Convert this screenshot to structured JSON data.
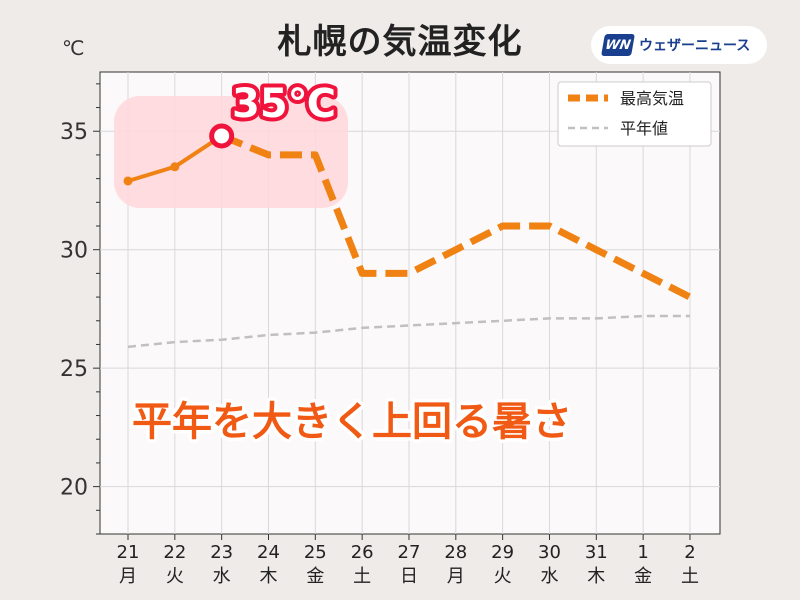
{
  "header": {
    "title": "札幌の気温変化",
    "unit": "℃",
    "logo_mark": "WN",
    "logo_text": "ウェザーニュース"
  },
  "annotations": {
    "peak_label": "35℃",
    "caption": "平年を大きく上回る暑さ"
  },
  "colors": {
    "max_temp": "#f08214",
    "normal": "#c0c0c0",
    "holiday": "#d03030",
    "saturday": "#2a82d0",
    "peak_marker": "#f0143c",
    "highlight_box": "#ffd7dc"
  },
  "chart_data": {
    "type": "line",
    "title": "札幌の気温変化",
    "ylabel": "℃",
    "ylim": [
      18,
      37.5
    ],
    "yticks": [
      20,
      25,
      30,
      35
    ],
    "grid": true,
    "legend_position": "top-right",
    "categories": [
      {
        "day": "21",
        "weekday": "月",
        "color": "holiday"
      },
      {
        "day": "22",
        "weekday": "火",
        "color": "normal"
      },
      {
        "day": "23",
        "weekday": "水",
        "color": "normal"
      },
      {
        "day": "24",
        "weekday": "木",
        "color": "normal"
      },
      {
        "day": "25",
        "weekday": "金",
        "color": "normal"
      },
      {
        "day": "26",
        "weekday": "土",
        "color": "saturday"
      },
      {
        "day": "27",
        "weekday": "日",
        "color": "holiday"
      },
      {
        "day": "28",
        "weekday": "月",
        "color": "normal"
      },
      {
        "day": "29",
        "weekday": "火",
        "color": "normal"
      },
      {
        "day": "30",
        "weekday": "水",
        "color": "normal"
      },
      {
        "day": "31",
        "weekday": "木",
        "color": "normal"
      },
      {
        "day": "1",
        "weekday": "金",
        "color": "normal"
      },
      {
        "day": "2",
        "weekday": "土",
        "color": "saturday"
      }
    ],
    "series": [
      {
        "name": "最高気温",
        "observed": [
          32.9,
          33.5,
          34.8
        ],
        "forecast": [
          34.8,
          34.0,
          34.0,
          29.0,
          29.0,
          30.0,
          31.0,
          31.0,
          30.0,
          29.0,
          28.0
        ],
        "values": [
          32.9,
          33.5,
          34.8,
          34.0,
          34.0,
          29.0,
          29.0,
          30.0,
          31.0,
          31.0,
          30.0,
          29.0,
          28.0
        ]
      },
      {
        "name": "平年値",
        "values": [
          25.9,
          26.1,
          26.2,
          26.4,
          26.5,
          26.7,
          26.8,
          26.9,
          27.0,
          27.1,
          27.1,
          27.2,
          27.2
        ]
      }
    ],
    "peak": {
      "index": 2,
      "value": 34.8
    }
  }
}
